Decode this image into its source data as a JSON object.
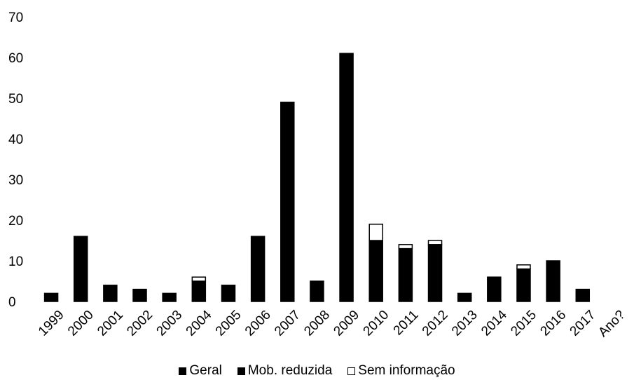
{
  "chart_data": {
    "type": "bar",
    "stacked": true,
    "categories": [
      "1999",
      "2000",
      "2001",
      "2002",
      "2003",
      "2004",
      "2005",
      "2006",
      "2007",
      "2008",
      "2009",
      "2010",
      "2011",
      "2012",
      "2013",
      "2014",
      "2015",
      "2016",
      "2017",
      "Ano?"
    ],
    "series": [
      {
        "name": "Geral",
        "color": "#000000",
        "values": [
          2,
          16,
          4,
          3,
          2,
          5,
          4,
          16,
          49,
          5,
          61,
          15,
          13,
          14,
          1,
          6,
          8,
          10,
          3,
          0
        ]
      },
      {
        "name": "Mob. reduzida",
        "color": "#000000",
        "values": [
          0,
          0,
          0,
          0,
          0,
          0,
          0,
          0,
          0,
          0,
          0,
          0,
          0,
          0,
          1,
          0,
          0,
          0,
          0,
          0
        ]
      },
      {
        "name": "Sem informação",
        "color": "#ffffff",
        "values": [
          0,
          0,
          0,
          0,
          0,
          1,
          0,
          0,
          0,
          0,
          0,
          4,
          1,
          1,
          0,
          0,
          1,
          0,
          0,
          0
        ]
      }
    ],
    "ylim": [
      0,
      70
    ],
    "yticks": [
      0,
      10,
      20,
      30,
      40,
      50,
      60,
      70
    ],
    "grid": false,
    "legend": "bottom",
    "title": "",
    "xlabel": "",
    "ylabel": ""
  }
}
